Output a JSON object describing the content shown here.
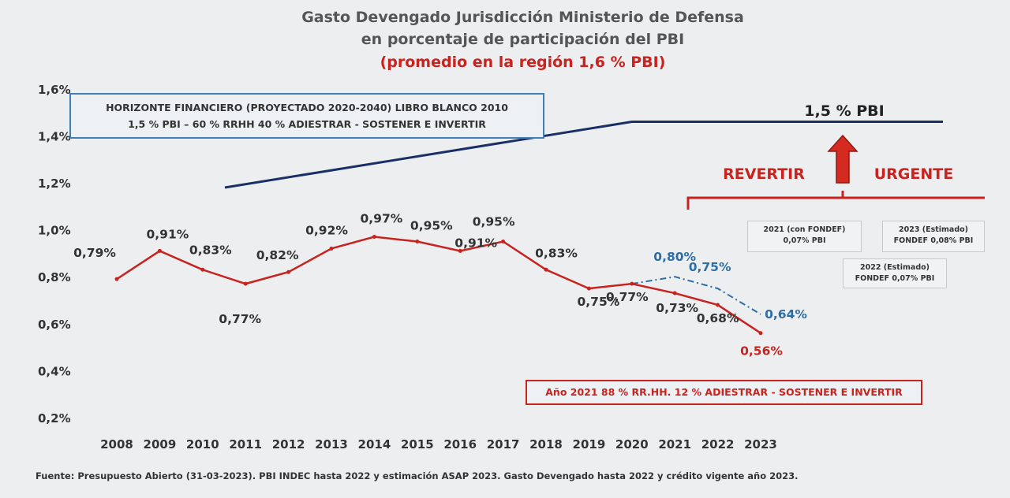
{
  "title": {
    "line1": "Gasto Devengado Jurisdicción Ministerio de Defensa",
    "line2": "en porcentaje de participación del PBI",
    "line3": "(promedio en la región 1,6 % PBI)"
  },
  "horizon_box": {
    "line1": "HORIZONTE FINANCIERO (PROYECTADO 2020-2040) LIBRO BLANCO 2010",
    "line2": "1,5 % PBI – 60 % RRHH 40 % ADIESTRAR - SOSTENER E INVERTIR"
  },
  "year2021_box": "Año 2021  88 % RR.HH. 12 % ADIESTRAR - SOSTENER E INVERTIR",
  "notes": {
    "n2021_l1": "2021 (con FONDEF)",
    "n2021_l2": "0,07% PBI",
    "n2023_l1": "2023 (Estimado)",
    "n2023_l2": "FONDEF 0,08% PBI",
    "n2022_l1": "2022 (Estimado)",
    "n2022_l2": "FONDEF 0,07% PBI"
  },
  "source": "Fuente: Presupuesto Abierto (31-03-2023). PBI INDEC hasta 2022 y estimación ASAP 2023. Gasto Devengado hasta 2022 y crédito vigente año 2023.",
  "colors": {
    "main_line": "#c8231e",
    "fondef_line": "#2e6ea6",
    "target_line": "#1a2f66",
    "revertir": "#c8231e",
    "text": "#333333"
  },
  "chart_data": {
    "type": "line",
    "categories": [
      "2008",
      "2009",
      "2010",
      "2011",
      "2012",
      "2013",
      "2014",
      "2015",
      "2016",
      "2017",
      "2018",
      "2019",
      "2020",
      "2021",
      "2022",
      "2023"
    ],
    "yticks": [
      "0,2%",
      "0,4%",
      "0,6%",
      "0,8%",
      "1,0%",
      "1,2%",
      "1,4%",
      "1,6%"
    ],
    "ylim": [
      0.2,
      1.6
    ],
    "grid": false,
    "series": [
      {
        "values": [
          0.79,
          0.91,
          0.83,
          0.77,
          0.82,
          0.92,
          0.97,
          0.95,
          0.91,
          0.95,
          0.83,
          0.75,
          0.77,
          0.73,
          0.68,
          0.56
        ],
        "labels": [
          "0,79%",
          "0,91%",
          "0,83%",
          "0,77%",
          "0,82%",
          "0,92%",
          "0,97%",
          "0,95%",
          "0,91%",
          "0,95%",
          "0,83%",
          "0,75%",
          "0,77%",
          "0,73%",
          "0,68%",
          "0,56%"
        ]
      },
      {
        "x": [
          "2020",
          "2021",
          "2022",
          "2023"
        ],
        "values": [
          0.77,
          0.8,
          0.75,
          0.64
        ],
        "labels": [
          "",
          "0,80%",
          "0,75%",
          "0,64%"
        ],
        "style": "dash-dot"
      },
      {
        "x": [
          "2010",
          "2020",
          "2023"
        ],
        "values": [
          1.18,
          1.46,
          1.46
        ],
        "style": "target"
      }
    ],
    "annotations": {
      "target_label": "1,5 % PBI",
      "revertir": "REVERTIR",
      "urgente": "URGENTE"
    }
  }
}
